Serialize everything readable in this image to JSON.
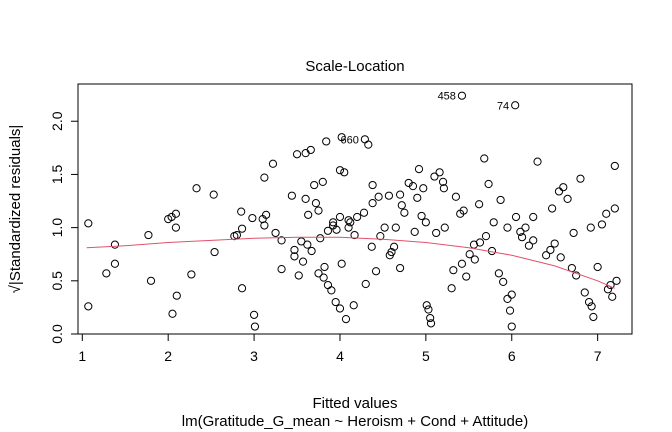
{
  "chart_data": {
    "type": "scatter",
    "title": "Scale-Location",
    "xlabel": "Fitted values",
    "ylabel": "√|Standardized residuals|",
    "subtitle": "lm(Gratitude_G_mean ~ Heroism + Cond + Attitude)",
    "xlim": [
      0.95,
      7.4
    ],
    "ylim": [
      0,
      2.35
    ],
    "xticks": [
      "1",
      "2",
      "3",
      "4",
      "5",
      "6",
      "7"
    ],
    "yticks": [
      "0.0",
      "0.5",
      "1.0",
      "1.5",
      "2.0"
    ],
    "grid": false,
    "point_color": "#000000",
    "smooth_color": "#DF536B",
    "labeled_points": [
      {
        "label": "458",
        "x": 5.42,
        "y": 2.24
      },
      {
        "label": "74",
        "x": 6.04,
        "y": 2.15
      },
      {
        "label": "660",
        "x": 4.29,
        "y": 1.83
      }
    ],
    "smooth": {
      "x": [
        1.05,
        1.5,
        2.0,
        2.5,
        3.0,
        3.5,
        4.0,
        4.5,
        5.0,
        5.5,
        6.0,
        6.5,
        7.0,
        7.2
      ],
      "y": [
        0.81,
        0.83,
        0.86,
        0.88,
        0.9,
        0.91,
        0.91,
        0.89,
        0.86,
        0.81,
        0.74,
        0.64,
        0.5,
        0.43
      ]
    },
    "points": [
      [
        1.07,
        1.04
      ],
      [
        1.07,
        0.26
      ],
      [
        1.28,
        0.57
      ],
      [
        1.38,
        0.84
      ],
      [
        1.38,
        0.66
      ],
      [
        1.77,
        0.93
      ],
      [
        1.8,
        0.5
      ],
      [
        2.0,
        1.08
      ],
      [
        2.04,
        1.1
      ],
      [
        2.09,
        1.13
      ],
      [
        2.09,
        1.0
      ],
      [
        2.05,
        0.19
      ],
      [
        2.1,
        0.36
      ],
      [
        2.27,
        0.56
      ],
      [
        2.33,
        1.37
      ],
      [
        2.53,
        1.31
      ],
      [
        2.54,
        0.77
      ],
      [
        2.77,
        0.92
      ],
      [
        2.8,
        0.93
      ],
      [
        2.85,
        1.15
      ],
      [
        2.86,
        0.99
      ],
      [
        2.86,
        0.43
      ],
      [
        2.98,
        1.09
      ],
      [
        3.0,
        0.18
      ],
      [
        3.01,
        0.07
      ],
      [
        3.1,
        1.08
      ],
      [
        3.12,
        1.02
      ],
      [
        3.14,
        1.12
      ],
      [
        3.12,
        1.47
      ],
      [
        3.22,
        1.6
      ],
      [
        3.25,
        0.95
      ],
      [
        3.32,
        0.88
      ],
      [
        3.32,
        0.61
      ],
      [
        3.44,
        1.3
      ],
      [
        3.47,
        0.79
      ],
      [
        3.47,
        0.73
      ],
      [
        3.5,
        1.69
      ],
      [
        3.55,
        0.87
      ],
      [
        3.6,
        1.27
      ],
      [
        3.6,
        1.7
      ],
      [
        3.62,
        0.84
      ],
      [
        3.66,
        1.73
      ],
      [
        3.7,
        1.4
      ],
      [
        3.75,
        0.57
      ],
      [
        3.75,
        1.16
      ],
      [
        3.8,
        1.43
      ],
      [
        3.81,
        0.53
      ],
      [
        3.84,
        1.81
      ],
      [
        3.86,
        0.97
      ],
      [
        3.86,
        0.46
      ],
      [
        3.9,
        0.41
      ],
      [
        3.92,
        1.05
      ],
      [
        3.95,
        0.3
      ],
      [
        3.96,
        0.98
      ],
      [
        4.0,
        1.1
      ],
      [
        4.0,
        1.54
      ],
      [
        4.0,
        0.24
      ],
      [
        4.02,
        1.85
      ],
      [
        4.05,
        1.52
      ],
      [
        4.07,
        0.14
      ],
      [
        4.1,
        1.0
      ],
      [
        4.1,
        1.07
      ],
      [
        4.16,
        0.27
      ],
      [
        4.2,
        1.1
      ],
      [
        4.28,
        1.14
      ],
      [
        4.3,
        0.47
      ],
      [
        4.33,
        1.78
      ],
      [
        4.38,
        1.23
      ],
      [
        4.38,
        1.4
      ],
      [
        4.42,
        0.59
      ],
      [
        4.45,
        1.29
      ],
      [
        4.52,
        1.0
      ],
      [
        4.58,
        0.74
      ],
      [
        4.6,
        0.77
      ],
      [
        4.63,
        0.82
      ],
      [
        4.7,
        0.62
      ],
      [
        4.7,
        1.31
      ],
      [
        4.72,
        1.21
      ],
      [
        4.75,
        1.14
      ],
      [
        4.8,
        1.42
      ],
      [
        4.85,
        1.39
      ],
      [
        4.9,
        1.28
      ],
      [
        4.92,
        1.55
      ],
      [
        4.95,
        1.11
      ],
      [
        4.97,
        1.37
      ],
      [
        5.0,
        1.05
      ],
      [
        5.01,
        0.27
      ],
      [
        5.03,
        0.23
      ],
      [
        5.05,
        0.15
      ],
      [
        5.06,
        0.1
      ],
      [
        5.1,
        1.48
      ],
      [
        5.16,
        1.52
      ],
      [
        5.2,
        1.43
      ],
      [
        5.21,
        1.37
      ],
      [
        5.22,
        1.0
      ],
      [
        5.3,
        0.43
      ],
      [
        5.35,
        1.29
      ],
      [
        5.4,
        1.13
      ],
      [
        5.44,
        1.16
      ],
      [
        5.47,
        0.54
      ],
      [
        5.51,
        0.75
      ],
      [
        5.56,
        0.84
      ],
      [
        5.63,
        0.86
      ],
      [
        5.68,
        1.65
      ],
      [
        5.73,
        1.41
      ],
      [
        5.79,
        1.05
      ],
      [
        5.85,
        0.57
      ],
      [
        5.9,
        0.49
      ],
      [
        5.95,
        0.33
      ],
      [
        5.98,
        0.22
      ],
      [
        6.0,
        0.07
      ],
      [
        6.0,
        0.37
      ],
      [
        6.05,
        1.1
      ],
      [
        6.1,
        0.96
      ],
      [
        6.16,
        1.0
      ],
      [
        6.2,
        0.83
      ],
      [
        6.25,
        1.1
      ],
      [
        6.3,
        1.62
      ],
      [
        6.4,
        0.74
      ],
      [
        6.45,
        0.79
      ],
      [
        6.5,
        0.85
      ],
      [
        6.55,
        1.34
      ],
      [
        6.6,
        1.38
      ],
      [
        6.65,
        1.27
      ],
      [
        6.7,
        0.62
      ],
      [
        6.75,
        0.55
      ],
      [
        6.8,
        1.46
      ],
      [
        6.85,
        0.39
      ],
      [
        6.9,
        0.3
      ],
      [
        6.93,
        0.26
      ],
      [
        6.95,
        0.16
      ],
      [
        7.05,
        1.03
      ],
      [
        7.1,
        1.13
      ],
      [
        7.15,
        0.46
      ],
      [
        7.2,
        1.58
      ],
      [
        7.2,
        1.18
      ],
      [
        7.22,
        0.5
      ],
      [
        7.0,
        0.63
      ],
      [
        6.57,
        0.72
      ],
      [
        6.12,
        0.91
      ],
      [
        5.87,
        1.26
      ],
      [
        5.62,
        1.22
      ],
      [
        4.17,
        0.93
      ],
      [
        4.12,
        1.05
      ],
      [
        3.77,
        0.9
      ],
      [
        3.52,
        0.55
      ],
      [
        3.57,
        0.68
      ],
      [
        3.67,
        0.78
      ],
      [
        3.92,
        1.02
      ],
      [
        4.47,
        0.92
      ],
      [
        4.87,
        0.96
      ],
      [
        5.12,
        0.95
      ],
      [
        5.42,
        0.66
      ],
      [
        5.7,
        0.92
      ],
      [
        5.95,
        1.0
      ],
      [
        6.25,
        0.88
      ],
      [
        6.47,
        1.18
      ],
      [
        6.72,
        0.95
      ],
      [
        6.92,
        1.0
      ],
      [
        7.17,
        0.35
      ],
      [
        7.12,
        0.42
      ],
      [
        5.77,
        0.78
      ],
      [
        5.57,
        0.7
      ],
      [
        5.32,
        0.6
      ],
      [
        4.57,
        1.3
      ],
      [
        4.37,
        0.82
      ],
      [
        4.02,
        0.66
      ],
      [
        3.82,
        0.63
      ],
      [
        3.72,
        1.23
      ],
      [
        3.63,
        1.12
      ],
      [
        4.65,
        1.0
      ]
    ]
  }
}
